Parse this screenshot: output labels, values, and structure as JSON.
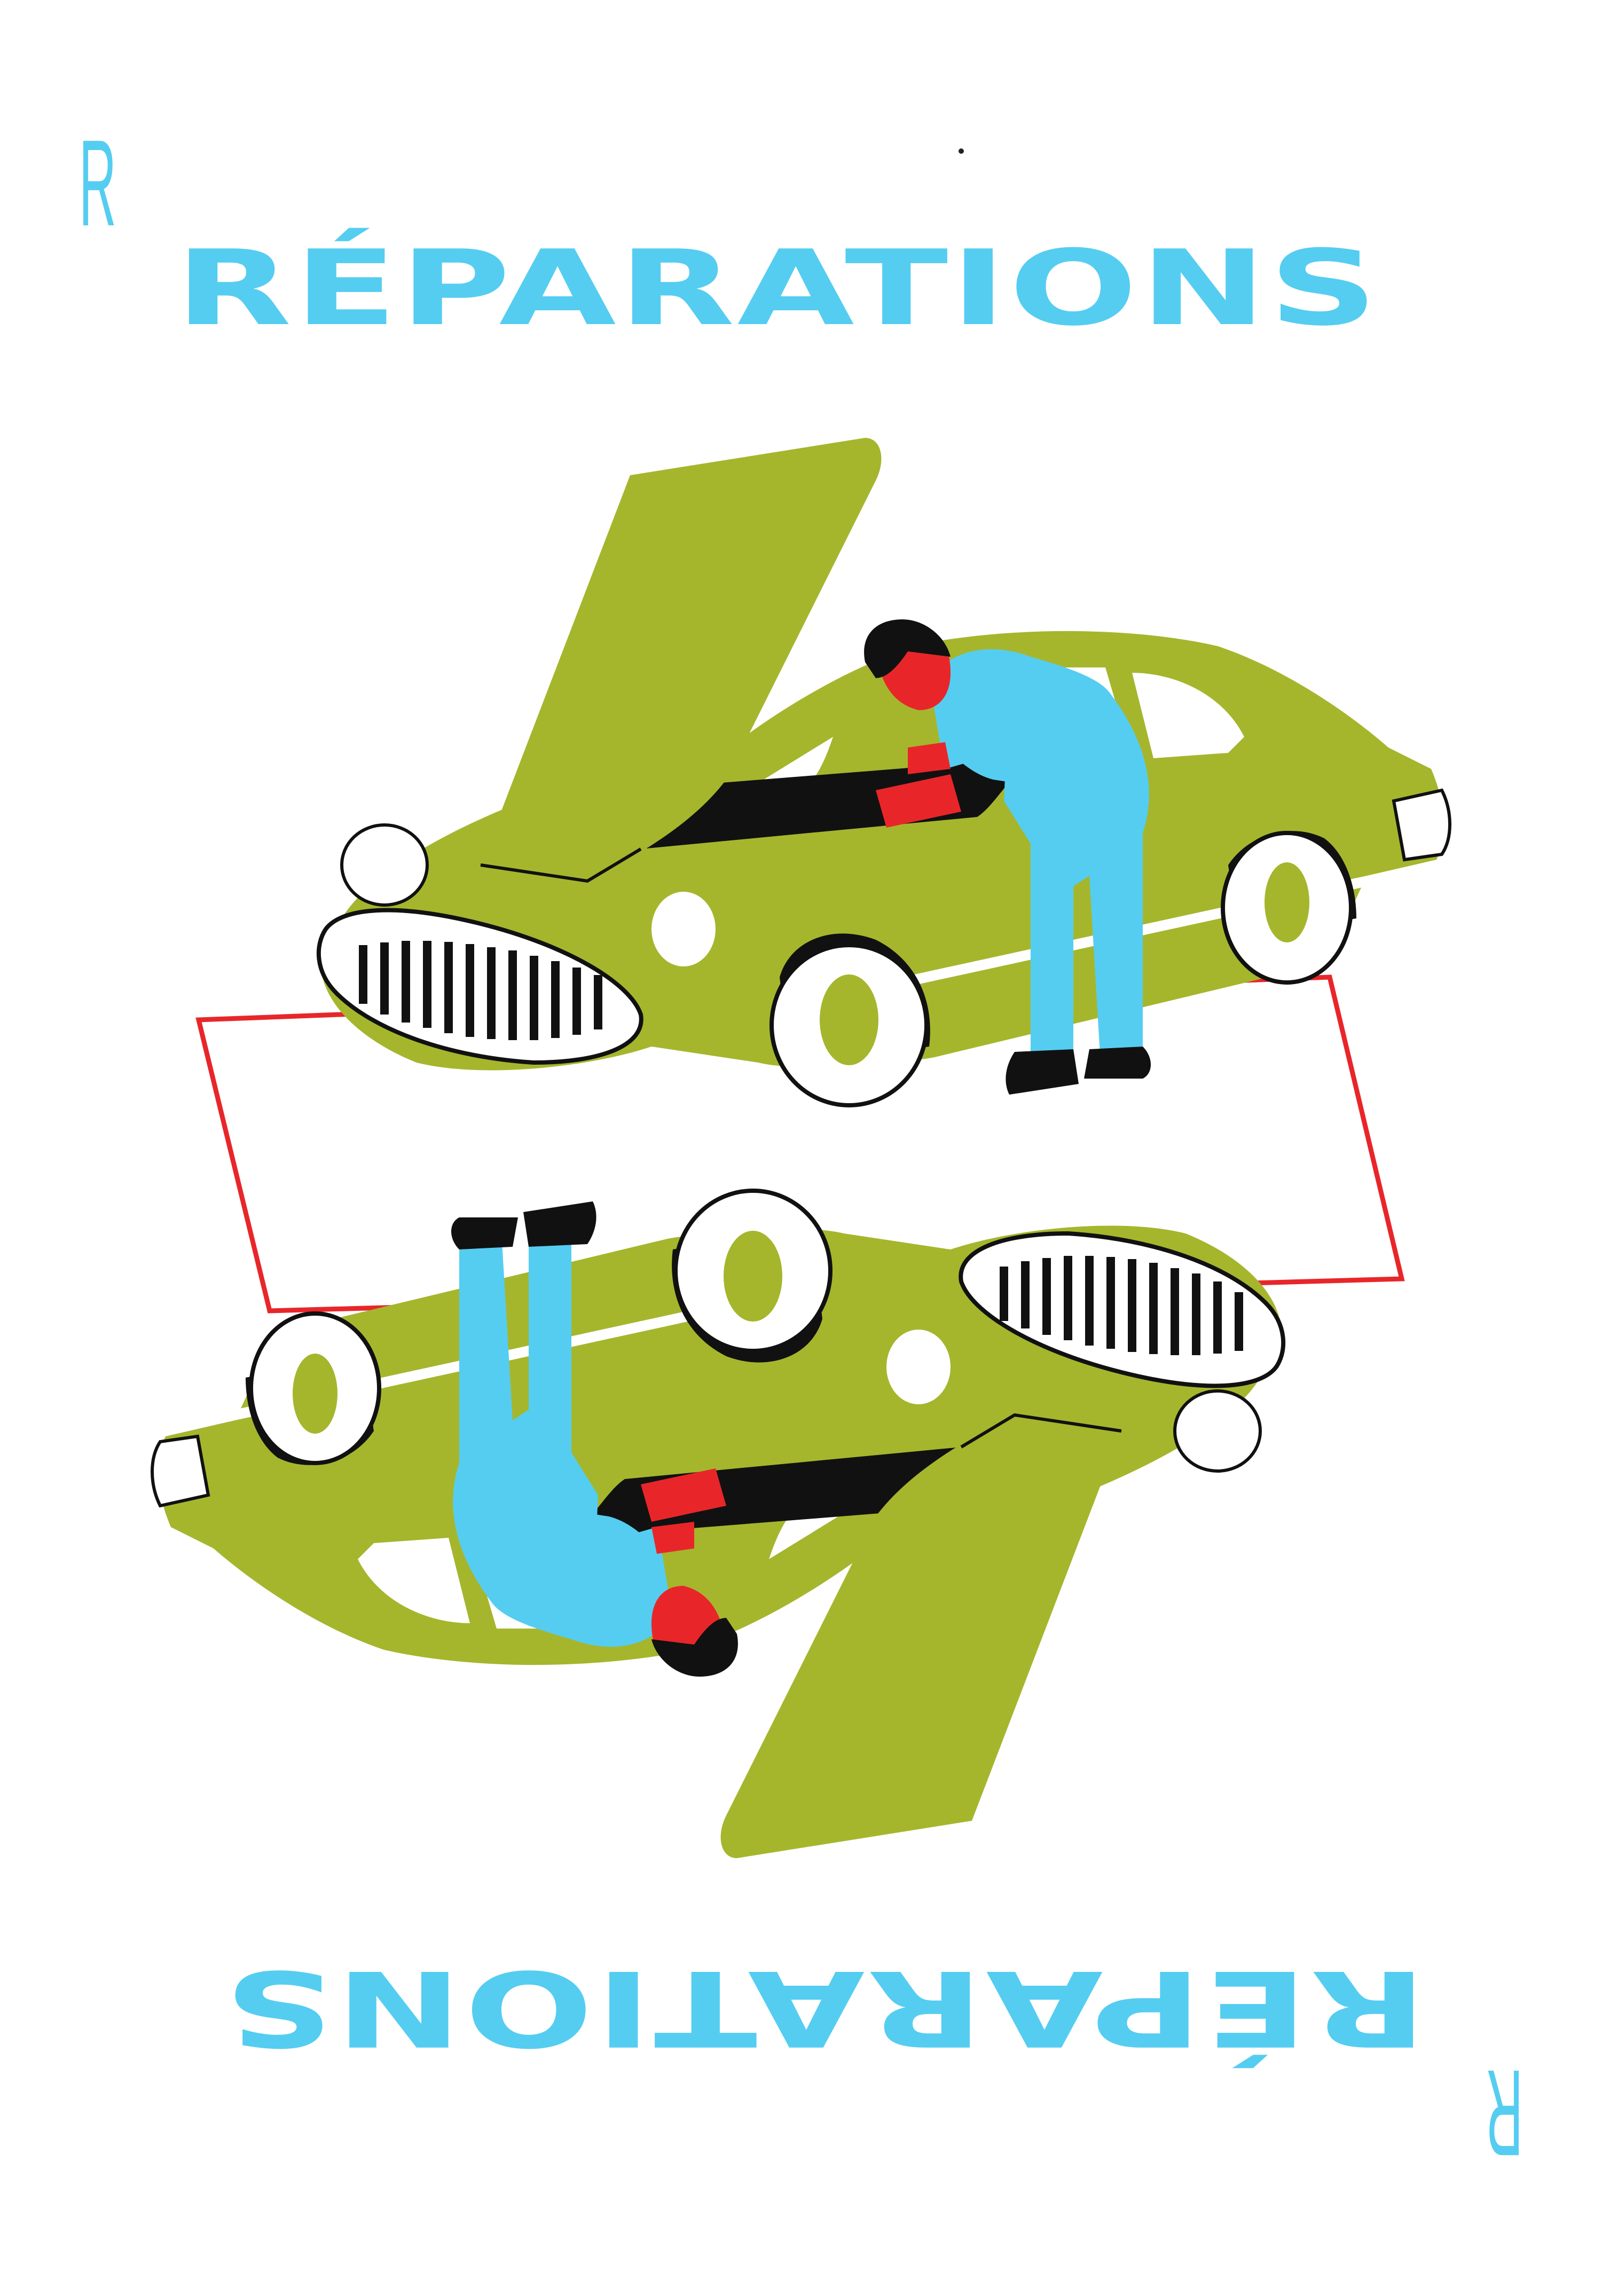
{
  "card": {
    "title": "RÉPARATIONS",
    "corner_letter": "R",
    "illustration": "mechanic-repairing-car-with-open-hood"
  },
  "colors": {
    "background": "#ffffff",
    "title": "#55cdf1",
    "car_body": "#a5b62d",
    "mechanic_clothes": "#55cdf1",
    "mechanic_skin": "#e8262a",
    "outline": "#111111",
    "frame": "#e8262a"
  }
}
